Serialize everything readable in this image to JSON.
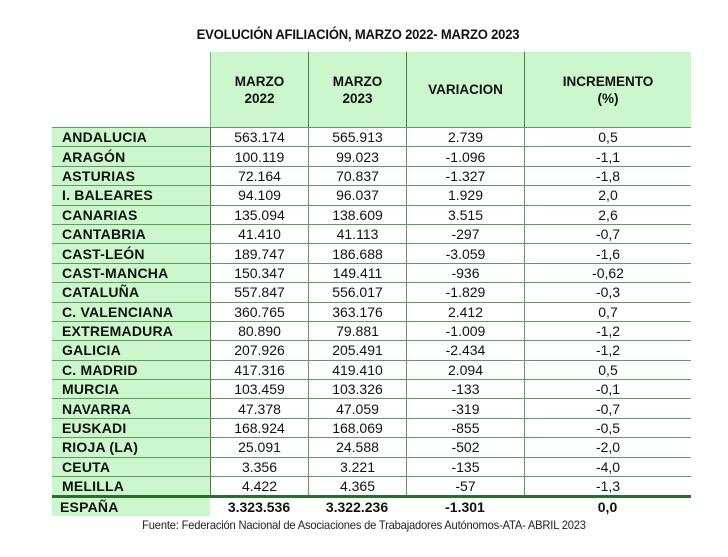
{
  "title": "EVOLUCIÓN AFILIACIÓN, MARZO 2022- MARZO 2023",
  "header": {
    "columns": [
      "MARZO\n2022",
      "MARZO\n2023",
      "VARIACION",
      "INCREMENTO\n(%)"
    ]
  },
  "rows": [
    {
      "region": "ANDALUCIA",
      "marzo_2022": "563.174",
      "marzo_2023": "565.913",
      "variacion": "2.739",
      "incremento": "0,5"
    },
    {
      "region": "ARAGÓN",
      "marzo_2022": "100.119",
      "marzo_2023": "99.023",
      "variacion": "-1.096",
      "incremento": "-1,1"
    },
    {
      "region": "ASTURIAS",
      "marzo_2022": "72.164",
      "marzo_2023": "70.837",
      "variacion": "-1.327",
      "incremento": "-1,8"
    },
    {
      "region": "I. BALEARES",
      "marzo_2022": "94.109",
      "marzo_2023": "96.037",
      "variacion": "1.929",
      "incremento": "2,0"
    },
    {
      "region": "CANARIAS",
      "marzo_2022": "135.094",
      "marzo_2023": "138.609",
      "variacion": "3.515",
      "incremento": "2,6"
    },
    {
      "region": "CANTABRIA",
      "marzo_2022": "41.410",
      "marzo_2023": "41.113",
      "variacion": "-297",
      "incremento": "-0,7"
    },
    {
      "region": "CAST-LEÓN",
      "marzo_2022": "189.747",
      "marzo_2023": "186.688",
      "variacion": "-3.059",
      "incremento": "-1,6"
    },
    {
      "region": "CAST-MANCHA",
      "marzo_2022": "150.347",
      "marzo_2023": "149.411",
      "variacion": "-936",
      "incremento": "-0,62"
    },
    {
      "region": "CATALUÑA",
      "marzo_2022": "557.847",
      "marzo_2023": "556.017",
      "variacion": "-1.829",
      "incremento": "-0,3"
    },
    {
      "region": "C. VALENCIANA",
      "marzo_2022": "360.765",
      "marzo_2023": "363.176",
      "variacion": "2.412",
      "incremento": "0,7"
    },
    {
      "region": "EXTREMADURA",
      "marzo_2022": "80.890",
      "marzo_2023": "79.881",
      "variacion": "-1.009",
      "incremento": "-1,2"
    },
    {
      "region": "GALICIA",
      "marzo_2022": "207.926",
      "marzo_2023": "205.491",
      "variacion": "-2.434",
      "incremento": "-1,2"
    },
    {
      "region": "C. MADRID",
      "marzo_2022": "417.316",
      "marzo_2023": "419.410",
      "variacion": "2.094",
      "incremento": "0,5"
    },
    {
      "region": "MURCIA",
      "marzo_2022": "103.459",
      "marzo_2023": "103.326",
      "variacion": "-133",
      "incremento": "-0,1"
    },
    {
      "region": "NAVARRA",
      "marzo_2022": "47.378",
      "marzo_2023": "47.059",
      "variacion": "-319",
      "incremento": "-0,7"
    },
    {
      "region": "EUSKADI",
      "marzo_2022": "168.924",
      "marzo_2023": "168.069",
      "variacion": "-855",
      "incremento": "-0,5"
    },
    {
      "region": "RIOJA (LA)",
      "marzo_2022": "25.091",
      "marzo_2023": "24.588",
      "variacion": "-502",
      "incremento": "-2,0"
    },
    {
      "region": "CEUTA",
      "marzo_2022": "3.356",
      "marzo_2023": "3.221",
      "variacion": "-135",
      "incremento": "-4,0"
    },
    {
      "region": "MELILLA",
      "marzo_2022": "4.422",
      "marzo_2023": "4.365",
      "variacion": "-57",
      "incremento": "-1,3"
    }
  ],
  "total": {
    "region": "ESPAÑA",
    "marzo_2022": "3.323.536",
    "marzo_2023": "3.322.236",
    "variacion": "-1.301",
    "incremento": "0,0"
  },
  "source": "Fuente: Federación Nacional de Asociaciones de Trabajadores Autónomos-ATA- ABRIL 2023",
  "colors": {
    "header_bg": "#ccf7cc",
    "label_bg": "#ccf7cc",
    "grid_line": "#5f9a5f",
    "total_rule": "#2e6b2e"
  }
}
